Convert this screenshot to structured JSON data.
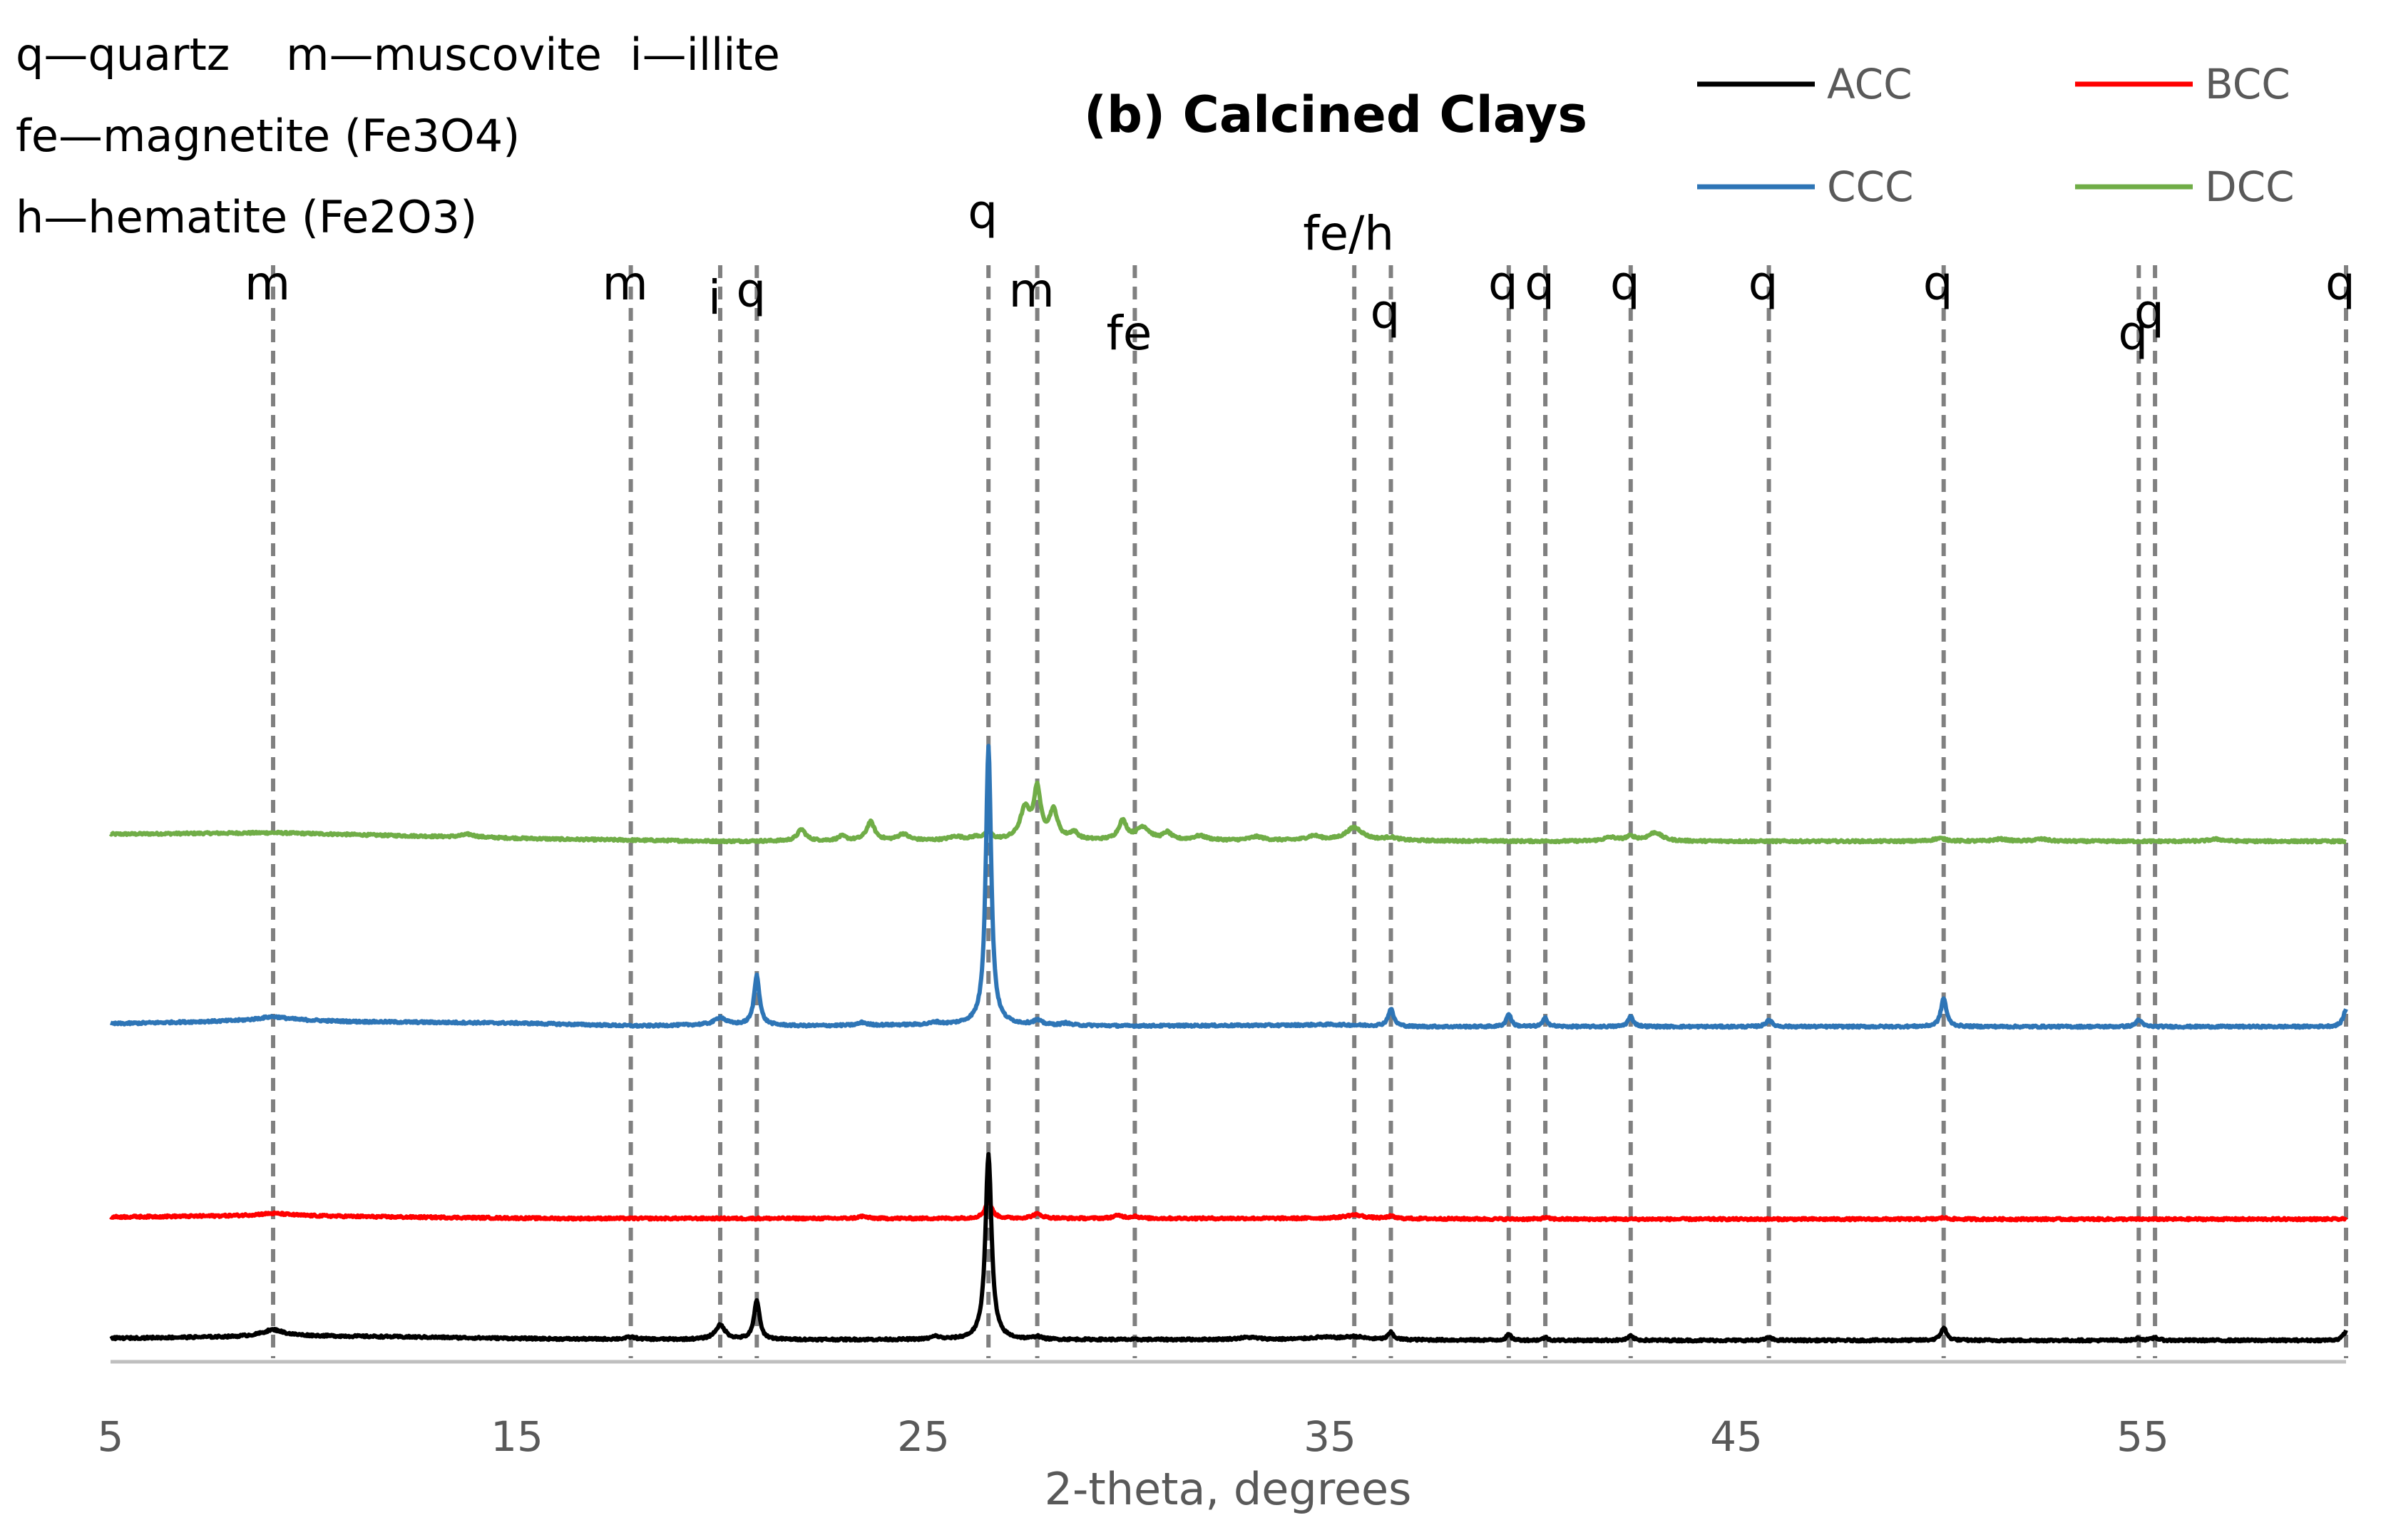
{
  "chart_data": {
    "type": "line",
    "title": "(b) Calcined Clays",
    "xlabel": "2-theta, degrees",
    "ylabel": "",
    "xlim": [
      5,
      60
    ],
    "xticks": [
      5,
      15,
      25,
      35,
      45,
      55
    ],
    "grid": false,
    "legend_position": "top-right",
    "key_lines": [
      "q—quartz    m—muscovite  i—illite",
      "fe—magnetite (Fe3O4)",
      "h—hematite (Fe2O3)"
    ],
    "reference_lines": [
      {
        "x": 9.0,
        "label": "m"
      },
      {
        "x": 17.8,
        "label": "m"
      },
      {
        "x": 20.0,
        "label": "i"
      },
      {
        "x": 20.9,
        "label": "q"
      },
      {
        "x": 26.6,
        "label": "q"
      },
      {
        "x": 27.8,
        "label": "m"
      },
      {
        "x": 30.2,
        "label": "fe"
      },
      {
        "x": 35.6,
        "label": "fe/h"
      },
      {
        "x": 36.5,
        "label": "q"
      },
      {
        "x": 39.4,
        "label": "q"
      },
      {
        "x": 40.3,
        "label": "q"
      },
      {
        "x": 42.4,
        "label": "q"
      },
      {
        "x": 45.8,
        "label": "q"
      },
      {
        "x": 50.1,
        "label": "q"
      },
      {
        "x": 54.9,
        "label": "q"
      },
      {
        "x": 55.3,
        "label": "q"
      },
      {
        "x": 60.0,
        "label": "q"
      }
    ],
    "series": [
      {
        "name": "ACC",
        "color": "#000000",
        "baseline": 0.0,
        "background": [
          [
            5,
            3
          ],
          [
            8,
            5
          ],
          [
            9,
            7
          ],
          [
            12,
            5
          ],
          [
            16,
            2
          ],
          [
            20,
            1
          ],
          [
            25,
            1
          ],
          [
            30,
            1
          ],
          [
            35,
            1
          ],
          [
            40,
            0
          ],
          [
            50,
            0
          ],
          [
            60,
            0
          ]
        ],
        "peaks": [
          [
            9.0,
            8,
            0.3
          ],
          [
            17.8,
            3,
            0.15
          ],
          [
            20.0,
            20,
            0.15
          ],
          [
            20.9,
            55,
            0.08
          ],
          [
            25.3,
            4,
            0.12
          ],
          [
            26.6,
            260,
            0.09
          ],
          [
            27.8,
            4,
            0.1
          ],
          [
            33.0,
            3,
            0.3
          ],
          [
            34.8,
            3,
            0.4
          ],
          [
            35.6,
            4,
            0.3
          ],
          [
            36.5,
            10,
            0.08
          ],
          [
            39.4,
            8,
            0.07
          ],
          [
            40.3,
            4,
            0.07
          ],
          [
            42.4,
            6,
            0.08
          ],
          [
            45.8,
            4,
            0.08
          ],
          [
            50.1,
            18,
            0.08
          ],
          [
            54.9,
            3,
            0.08
          ],
          [
            55.3,
            4,
            0.08
          ],
          [
            60.0,
            13,
            0.08
          ]
        ]
      },
      {
        "name": "BCC",
        "color": "#ff0000",
        "baseline": 170.0,
        "background": [
          [
            5,
            3
          ],
          [
            9,
            5
          ],
          [
            12,
            3
          ],
          [
            16,
            1
          ],
          [
            20,
            1
          ],
          [
            25,
            1
          ],
          [
            30,
            1
          ],
          [
            35,
            1
          ],
          [
            40,
            0
          ],
          [
            50,
            0
          ],
          [
            60,
            0
          ]
        ],
        "peaks": [
          [
            9.0,
            3,
            0.5
          ],
          [
            23.5,
            3,
            0.12
          ],
          [
            26.6,
            24,
            0.1
          ],
          [
            27.8,
            6,
            0.15
          ],
          [
            29.8,
            4,
            0.15
          ],
          [
            30.2,
            3,
            0.1
          ],
          [
            35.6,
            5,
            0.3
          ],
          [
            36.5,
            3,
            0.1
          ],
          [
            40.3,
            2,
            0.1
          ],
          [
            50.1,
            2,
            0.1
          ]
        ]
      },
      {
        "name": "CCC",
        "color": "#2e75b6",
        "baseline": 440.0,
        "background": [
          [
            5,
            4
          ],
          [
            8,
            8
          ],
          [
            9,
            10
          ],
          [
            11,
            7
          ],
          [
            15,
            5
          ],
          [
            18,
            1
          ],
          [
            20,
            3
          ],
          [
            22,
            1
          ],
          [
            26,
            3
          ],
          [
            30,
            1
          ],
          [
            34,
            2
          ],
          [
            35,
            3
          ],
          [
            37,
            0
          ],
          [
            45,
            0
          ],
          [
            60,
            0
          ]
        ],
        "peaks": [
          [
            9.0,
            4,
            0.4
          ],
          [
            20.0,
            10,
            0.15
          ],
          [
            20.9,
            70,
            0.08
          ],
          [
            23.5,
            4,
            0.12
          ],
          [
            25.3,
            3,
            0.12
          ],
          [
            26.6,
            390,
            0.08
          ],
          [
            27.8,
            6,
            0.12
          ],
          [
            28.5,
            3,
            0.1
          ],
          [
            36.5,
            24,
            0.08
          ],
          [
            39.4,
            18,
            0.07
          ],
          [
            40.3,
            12,
            0.07
          ],
          [
            42.4,
            14,
            0.08
          ],
          [
            45.8,
            10,
            0.08
          ],
          [
            50.1,
            40,
            0.08
          ],
          [
            54.9,
            10,
            0.08
          ],
          [
            60.0,
            24,
            0.08
          ]
        ]
      },
      {
        "name": "DCC",
        "color": "#70ad47",
        "baseline": 700.0,
        "background": [
          [
            5,
            10
          ],
          [
            9,
            12
          ],
          [
            12,
            8
          ],
          [
            16,
            3
          ],
          [
            20,
            0
          ],
          [
            25,
            1
          ],
          [
            30,
            1
          ],
          [
            35,
            1
          ],
          [
            40,
            0
          ],
          [
            50,
            0
          ],
          [
            60,
            0
          ]
        ],
        "peaks": [
          [
            13.8,
            4,
            0.2
          ],
          [
            22.0,
            16,
            0.12
          ],
          [
            23.0,
            6,
            0.12
          ],
          [
            23.7,
            26,
            0.12
          ],
          [
            24.5,
            9,
            0.15
          ],
          [
            25.8,
            5,
            0.2
          ],
          [
            26.3,
            4,
            0.15
          ],
          [
            26.6,
            10,
            0.1
          ],
          [
            27.5,
            42,
            0.15
          ],
          [
            27.8,
            68,
            0.1
          ],
          [
            28.2,
            40,
            0.12
          ],
          [
            28.7,
            10,
            0.12
          ],
          [
            29.9,
            26,
            0.12
          ],
          [
            30.4,
            18,
            0.2
          ],
          [
            31.0,
            10,
            0.12
          ],
          [
            31.8,
            6,
            0.2
          ],
          [
            33.2,
            5,
            0.2
          ],
          [
            34.6,
            6,
            0.2
          ],
          [
            35.6,
            18,
            0.25
          ],
          [
            36.5,
            4,
            0.2
          ],
          [
            41.9,
            5,
            0.2
          ],
          [
            42.4,
            6,
            0.15
          ],
          [
            43.0,
            12,
            0.2
          ],
          [
            50.0,
            4,
            0.2
          ],
          [
            51.5,
            3,
            0.2
          ],
          [
            52.5,
            3,
            0.2
          ],
          [
            56.8,
            3,
            0.2
          ]
        ]
      }
    ]
  }
}
